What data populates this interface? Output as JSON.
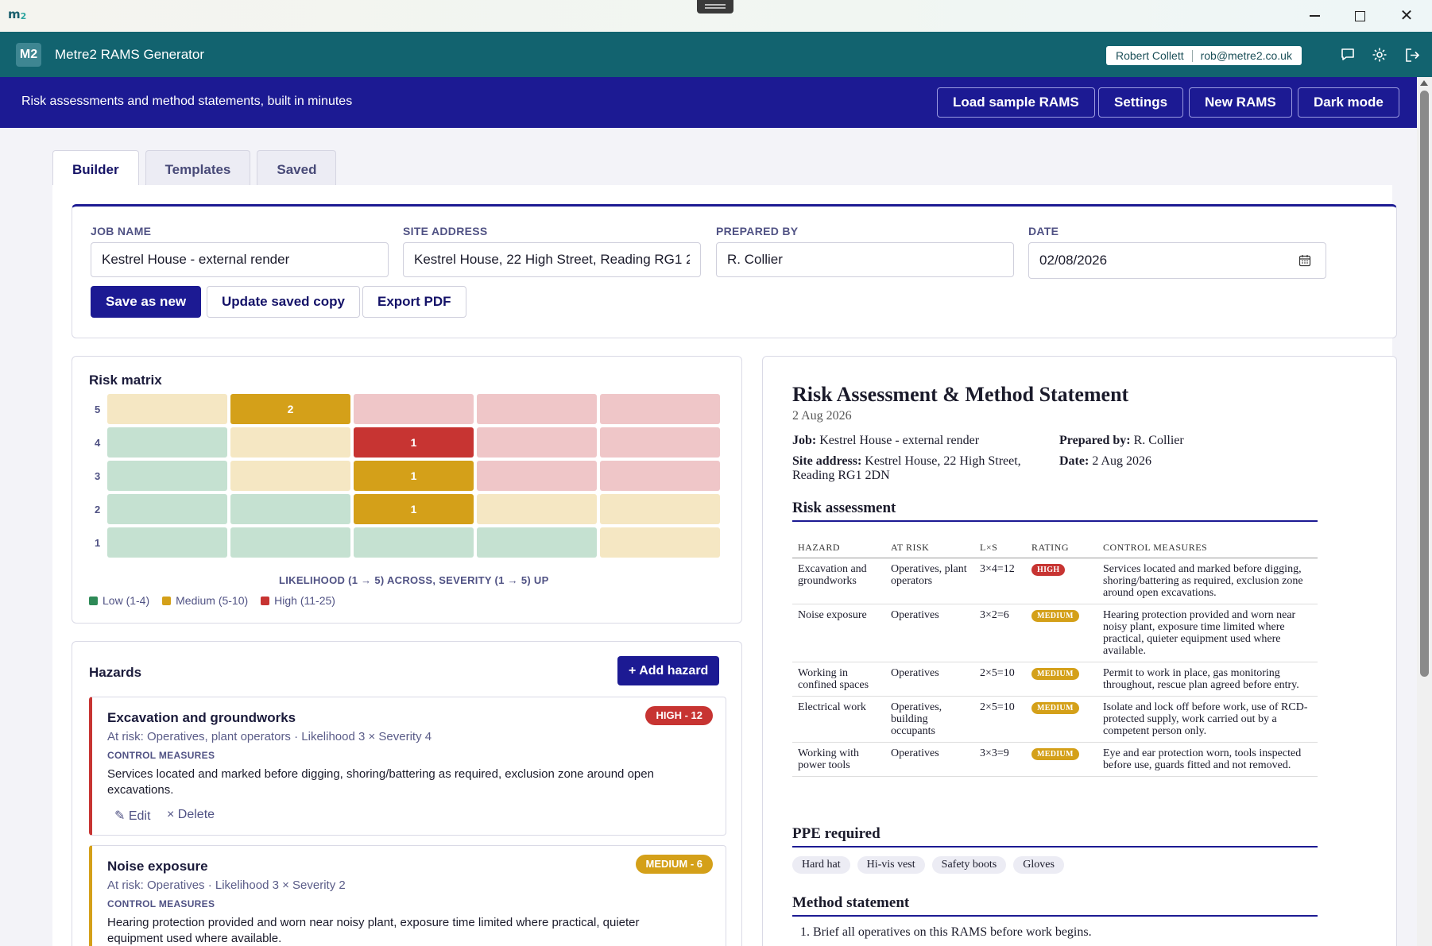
{
  "os": {
    "logo": "m",
    "logo_sub": "2"
  },
  "app": {
    "badge": "M2",
    "title": "Metre2 RAMS Generator",
    "user_name": "Robert Collett",
    "user_email": "rob@metre2.co.uk"
  },
  "banner": {
    "text": "Risk assessments and method statements, built in minutes",
    "buttons": [
      "Load sample RAMS",
      "Settings",
      "New RAMS",
      "Dark mode"
    ]
  },
  "tabs": [
    "Builder",
    "Templates",
    "Saved"
  ],
  "job": {
    "job_name_label": "JOB NAME",
    "job_name": "Kestrel House - external render",
    "site_address_label": "SITE ADDRESS",
    "site_address": "Kestrel House, 22 High Street, Reading RG1 2DN",
    "prepared_by_label": "PREPARED BY",
    "prepared_by": "R. Collier",
    "date_label": "DATE",
    "date": "02/08/2026",
    "save_new": "Save as new",
    "update_saved": "Update saved copy",
    "export_pdf": "Export PDF"
  },
  "matrix": {
    "title": "Risk matrix",
    "row_labels": [
      "5",
      "4",
      "3",
      "2",
      "1"
    ],
    "axis_label": "LIKELIHOOD (1 → 5) ACROSS, SEVERITY (1 → 5) UP",
    "legend": [
      "Low (1-4)",
      "Medium (5-10)",
      "High (11-25)"
    ],
    "colors": {
      "low": "#c5e1d1",
      "medium": "#f5e7c3",
      "high": "#efc6c8",
      "medium_active": "#d4a019",
      "high_active": "#c73432",
      "legend_low": "#2e8a57",
      "legend_medium": "#d4a019",
      "legend_high": "#c73432"
    },
    "counts": [
      {
        "likelihood": 2,
        "severity": 5,
        "count": "2",
        "level": "medium"
      },
      {
        "likelihood": 3,
        "severity": 4,
        "count": "1",
        "level": "high"
      },
      {
        "likelihood": 3,
        "severity": 3,
        "count": "1",
        "level": "medium"
      },
      {
        "likelihood": 3,
        "severity": 2,
        "count": "1",
        "level": "medium"
      }
    ]
  },
  "hazards": {
    "title": "Hazards",
    "add_button": "+ Add hazard",
    "items": [
      {
        "title": "Excavation and groundworks",
        "meta": "At risk: Operatives, plant operators · Likelihood 3 × Severity 4",
        "cm_label": "CONTROL MEASURES",
        "controls": "Services located and marked before digging, shoring/battering as required, exclusion zone around open excavations.",
        "badge": "HIGH - 12",
        "level": "high",
        "edit": "✎ Edit",
        "delete": "× Delete"
      },
      {
        "title": "Noise exposure",
        "meta": "At risk: Operatives · Likelihood 3 × Severity 2",
        "cm_label": "CONTROL MEASURES",
        "controls": "Hearing protection provided and worn near noisy plant, exposure time limited where practical, quieter equipment used where available.",
        "badge": "MEDIUM - 6",
        "level": "medium"
      }
    ]
  },
  "doc": {
    "title": "Risk Assessment & Method Statement",
    "date": "2 Aug 2026",
    "job_label": "Job:",
    "job": "Kestrel House - external render",
    "site_label": "Site address:",
    "site_line1": "Kestrel House, 22 High Street,",
    "site_line2": "Reading RG1 2DN",
    "prepared_label": "Prepared by:",
    "prepared": "R. Collier",
    "date_label": "Date:",
    "date_value": "2 Aug 2026",
    "risk_heading": "Risk assessment",
    "columns": [
      "HAZARD",
      "AT RISK",
      "L×S",
      "RATING",
      "CONTROL MEASURES"
    ],
    "rows": [
      {
        "hazard": "Excavation and groundworks",
        "at_risk": "Operatives, plant operators",
        "ls": "3×4=12",
        "rating": "HIGH",
        "level": "high",
        "controls": "Services located and marked before digging, shoring/battering as required, exclusion zone around open excavations."
      },
      {
        "hazard": "Noise exposure",
        "at_risk": "Operatives",
        "ls": "3×2=6",
        "rating": "MEDIUM",
        "level": "medium",
        "controls": "Hearing protection provided and worn near noisy plant, exposure time limited where practical, quieter equipment used where available."
      },
      {
        "hazard": "Working in confined spaces",
        "at_risk": "Operatives",
        "ls": "2×5=10",
        "rating": "MEDIUM",
        "level": "medium",
        "controls": "Permit to work in place, gas monitoring throughout, rescue plan agreed before entry."
      },
      {
        "hazard": "Electrical work",
        "at_risk": "Operatives, building occupants",
        "ls": "2×5=10",
        "rating": "MEDIUM",
        "level": "medium",
        "controls": "Isolate and lock off before work, use of RCD-protected supply, work carried out by a competent person only."
      },
      {
        "hazard": "Working with power tools",
        "at_risk": "Operatives",
        "ls": "3×3=9",
        "rating": "MEDIUM",
        "level": "medium",
        "controls": "Eye and ear protection worn, tools inspected before use, guards fitted and not removed."
      }
    ],
    "ppe_heading": "PPE required",
    "ppe": [
      "Hard hat",
      "Hi-vis vest",
      "Safety boots",
      "Gloves"
    ],
    "method_heading": "Method statement",
    "method_steps": [
      "1. Brief all operatives on this RAMS before work begins."
    ]
  }
}
